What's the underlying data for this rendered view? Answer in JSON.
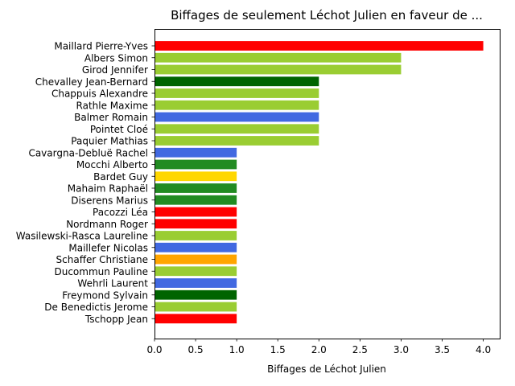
{
  "chart_data": {
    "type": "bar",
    "orientation": "horizontal",
    "title": "Biffages de seulement Léchot Julien en faveur de ...",
    "xlabel": "Biffages de Léchot Julien",
    "ylabel": "",
    "xlim": [
      0,
      4.2
    ],
    "xticks": [
      0.0,
      0.5,
      1.0,
      1.5,
      2.0,
      2.5,
      3.0,
      3.5,
      4.0
    ],
    "xtick_labels": [
      "0.0",
      "0.5",
      "1.0",
      "1.5",
      "2.0",
      "2.5",
      "3.0",
      "3.5",
      "4.0"
    ],
    "grid": false,
    "categories": [
      "Maillard Pierre-Yves",
      "Albers Simon",
      "Girod Jennifer",
      "Chevalley Jean-Bernard",
      "Chappuis Alexandre",
      "Rathle Maxime",
      "Balmer Romain",
      "Pointet Cloé",
      "Paquier Mathias",
      "Cavargna-Debluë Rachel",
      "Mocchi Alberto",
      "Bardet Guy",
      "Mahaim Raphaël",
      "Diserens Marius",
      "Pacozzi Léa",
      "Nordmann Roger",
      "Wasilewski-Rasca Laureline",
      "Maillefer Nicolas",
      "Schaffer Christiane",
      "Ducommun Pauline",
      "Wehrli Laurent",
      "Freymond Sylvain",
      "De Benedictis Jerome",
      "Tschopp Jean"
    ],
    "values": [
      4,
      3,
      3,
      2,
      2,
      2,
      2,
      2,
      2,
      1,
      1,
      1,
      1,
      1,
      1,
      1,
      1,
      1,
      1,
      1,
      1,
      1,
      1,
      1
    ],
    "colors": [
      "#ff0000",
      "#9acd32",
      "#9acd32",
      "#006400",
      "#9acd32",
      "#9acd32",
      "#4169e1",
      "#9acd32",
      "#9acd32",
      "#4169e1",
      "#228b22",
      "#ffd700",
      "#228b22",
      "#228b22",
      "#ff0000",
      "#ff0000",
      "#9acd32",
      "#4169e1",
      "#ffa500",
      "#9acd32",
      "#4169e1",
      "#006400",
      "#9acd32",
      "#ff0000"
    ]
  }
}
